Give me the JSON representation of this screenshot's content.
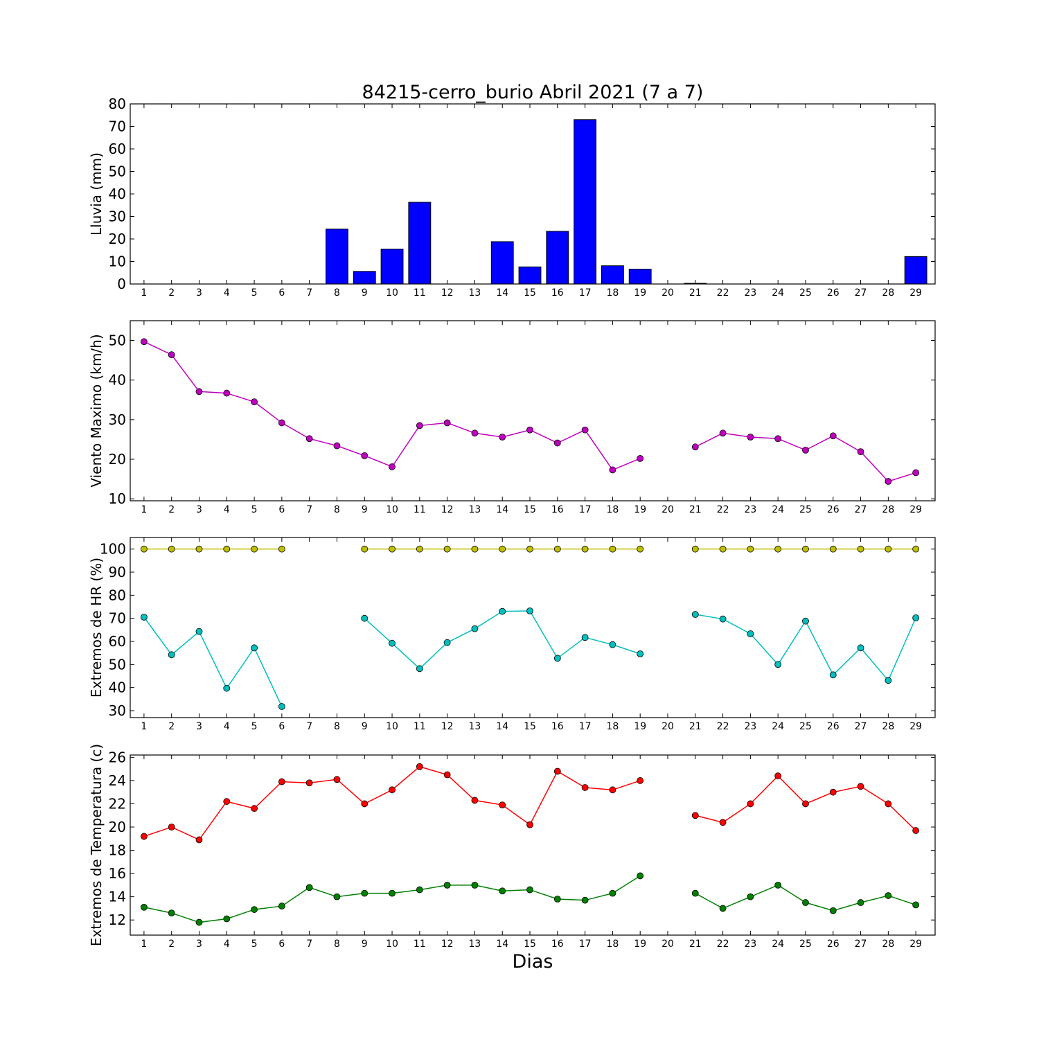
{
  "figure": {
    "title": "84215-cerro_burio Abril 2021  (7 a 7)",
    "xlabel": "Dias"
  },
  "chart_data": [
    {
      "type": "bar",
      "ylabel": "Lluvia (mm)",
      "ylim": [
        0,
        80
      ],
      "yticks": [
        0,
        10,
        20,
        30,
        40,
        50,
        60,
        70,
        80
      ],
      "x": [
        1,
        2,
        3,
        4,
        5,
        6,
        7,
        8,
        9,
        10,
        11,
        12,
        13,
        14,
        15,
        16,
        17,
        18,
        19,
        20,
        21,
        22,
        23,
        24,
        25,
        26,
        27,
        28,
        29
      ],
      "color": "#0000ff",
      "values": [
        0,
        0,
        0,
        0,
        0,
        0,
        0,
        24.4,
        5.6,
        15.5,
        36.3,
        0,
        0,
        18.8,
        7.6,
        23.4,
        73,
        8.1,
        6.6,
        0,
        0.3,
        0,
        0,
        0,
        0,
        0,
        0,
        0,
        12.2
      ]
    },
    {
      "type": "line",
      "ylabel": "Viento Maximo (km/h)",
      "ylim": [
        9.5,
        55
      ],
      "yticks": [
        10,
        20,
        30,
        40,
        50
      ],
      "x": [
        1,
        2,
        3,
        4,
        5,
        6,
        7,
        8,
        9,
        10,
        11,
        12,
        13,
        14,
        15,
        16,
        17,
        18,
        19,
        20,
        21,
        22,
        23,
        24,
        25,
        26,
        27,
        28,
        29
      ],
      "series": [
        {
          "color": "#bf00bf",
          "values": [
            49.7,
            46.4,
            37.1,
            36.7,
            34.5,
            29.2,
            25.2,
            23.4,
            20.9,
            18.1,
            28.5,
            29.2,
            26.6,
            25.6,
            27.4,
            24.1,
            27.4,
            17.3,
            20.2,
            null,
            23.1,
            26.6,
            25.6,
            25.2,
            22.3,
            25.9,
            21.9,
            14.4,
            16.6
          ]
        }
      ]
    },
    {
      "type": "line",
      "ylabel": "Extremos de HR (%)",
      "ylim": [
        27,
        105
      ],
      "yticks": [
        30,
        40,
        50,
        60,
        70,
        80,
        90,
        100
      ],
      "x": [
        1,
        2,
        3,
        4,
        5,
        6,
        7,
        8,
        9,
        10,
        11,
        12,
        13,
        14,
        15,
        16,
        17,
        18,
        19,
        20,
        21,
        22,
        23,
        24,
        25,
        26,
        27,
        28,
        29
      ],
      "series": [
        {
          "color": "#bfbf00",
          "values": [
            100,
            100,
            100,
            100,
            100,
            100,
            null,
            null,
            100,
            100,
            100,
            100,
            100,
            100,
            100,
            100,
            100,
            100,
            100,
            null,
            100,
            100,
            100,
            100,
            100,
            100,
            100,
            100,
            100
          ]
        },
        {
          "color": "#00bfbf",
          "values": [
            70.5,
            54.2,
            64.3,
            39.7,
            57.2,
            31.8,
            null,
            null,
            70,
            59.2,
            48.2,
            59.5,
            65.5,
            73,
            73.2,
            52.7,
            61.7,
            58.6,
            54.6,
            null,
            71.7,
            69.7,
            63.3,
            50,
            68.8,
            45.5,
            57.2,
            43.1,
            70.2
          ]
        }
      ]
    },
    {
      "type": "line",
      "ylabel": "Extremos de Temperatura (c)",
      "ylim": [
        10.7,
        26.2
      ],
      "yticks": [
        12,
        14,
        16,
        18,
        20,
        22,
        24,
        26
      ],
      "x": [
        1,
        2,
        3,
        4,
        5,
        6,
        7,
        8,
        9,
        10,
        11,
        12,
        13,
        14,
        15,
        16,
        17,
        18,
        19,
        20,
        21,
        22,
        23,
        24,
        25,
        26,
        27,
        28,
        29
      ],
      "series": [
        {
          "color": "#ff0000",
          "values": [
            19.2,
            20,
            18.9,
            22.2,
            21.6,
            23.9,
            23.8,
            24.1,
            22,
            23.2,
            25.2,
            24.5,
            22.3,
            21.9,
            20.2,
            24.8,
            23.4,
            23.2,
            24,
            null,
            21,
            20.4,
            22,
            24.4,
            22,
            23,
            23.5,
            22,
            19.7
          ]
        },
        {
          "color": "#008000",
          "values": [
            13.1,
            12.6,
            11.8,
            12.1,
            12.9,
            13.2,
            14.8,
            14,
            14.3,
            14.3,
            14.6,
            15,
            15,
            14.5,
            14.6,
            13.8,
            13.7,
            14.3,
            15.8,
            null,
            14.3,
            13,
            14,
            15,
            13.5,
            12.8,
            13.5,
            14.1,
            13.3
          ]
        }
      ]
    }
  ]
}
